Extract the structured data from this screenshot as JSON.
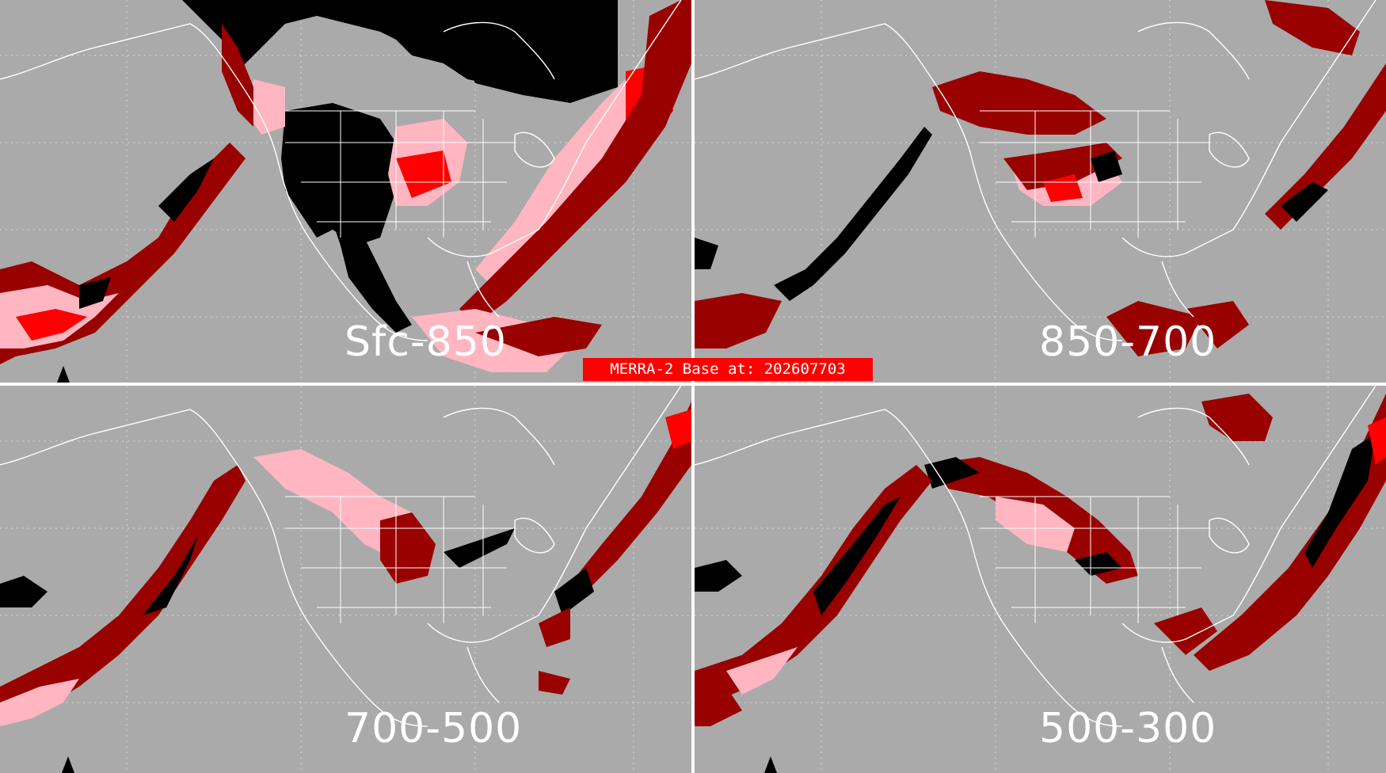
{
  "panels": [
    {
      "id": "sfc-850",
      "label": "Sfc-850"
    },
    {
      "id": "850-700",
      "label": "850-700"
    },
    {
      "id": "700-500",
      "label": "700-500"
    },
    {
      "id": "500-300",
      "label": "500-300"
    }
  ],
  "banner": {
    "text": "MERRA-2 Base at: 202607703"
  },
  "colors": {
    "ocean_land_background": "#aaaaaa",
    "coastlines": "#ffffff",
    "category_black": "#000000",
    "category_dark_red": "#990000",
    "category_red": "#ff0000",
    "category_pink": "#ffb6c1",
    "banner": "#ff0000"
  },
  "icons": {
    "north_marker": "triangle-up-icon"
  }
}
